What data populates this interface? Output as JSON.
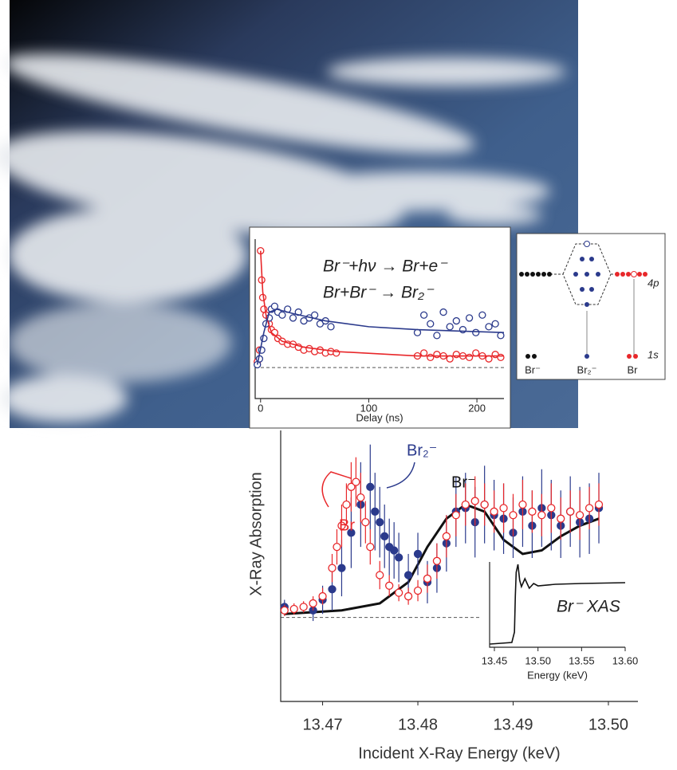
{
  "chart_data": [
    {
      "type": "scatter",
      "annotations": [
        "Br⁻+hν → Br+e⁻",
        "Br+Br⁻ → Br₂⁻"
      ],
      "x_label": "Delay (ns)",
      "xlim": [
        -5,
        225
      ],
      "xticks": [
        0,
        100,
        200
      ],
      "ylim": [
        -1.06,
        4.4
      ],
      "series": [
        {
          "kind": "scatter",
          "marker": "open",
          "color": "#e8272a",
          "x": [
            -3,
            -1,
            0,
            1,
            2,
            3,
            5,
            8,
            10,
            13,
            16,
            20,
            25,
            30,
            35,
            40,
            45,
            50,
            55,
            60,
            65,
            70,
            145,
            151,
            157,
            163,
            169,
            175,
            181,
            187,
            193,
            199,
            205,
            211,
            217,
            222
          ],
          "values": [
            0.2,
            0.6,
            4.0,
            3.0,
            2.4,
            2.0,
            1.8,
            1.5,
            1.3,
            1.2,
            1.0,
            0.9,
            0.8,
            0.8,
            0.7,
            0.6,
            0.65,
            0.55,
            0.6,
            0.5,
            0.55,
            0.5,
            0.4,
            0.5,
            0.35,
            0.45,
            0.4,
            0.3,
            0.45,
            0.4,
            0.35,
            0.5,
            0.4,
            0.3,
            0.45,
            0.35
          ]
        },
        {
          "kind": "scatter",
          "marker": "open",
          "color": "#2b3a8c",
          "x": [
            -3,
            -1,
            1,
            3,
            5,
            8,
            10,
            13,
            16,
            20,
            25,
            30,
            35,
            40,
            45,
            50,
            55,
            60,
            65,
            145,
            151,
            157,
            163,
            169,
            175,
            181,
            187,
            193,
            199,
            205,
            211,
            217,
            222
          ],
          "values": [
            0.1,
            0.3,
            0.6,
            1.0,
            1.5,
            1.7,
            2.0,
            2.1,
            1.9,
            1.8,
            2.0,
            1.7,
            1.9,
            1.6,
            1.7,
            1.8,
            1.5,
            1.6,
            1.4,
            1.2,
            1.8,
            1.5,
            1.1,
            1.9,
            1.4,
            1.6,
            1.3,
            1.7,
            1.2,
            1.8,
            1.4,
            1.5,
            1.1
          ]
        },
        {
          "kind": "line",
          "color": "#e8272a",
          "x": [
            0,
            2,
            5,
            10,
            20,
            40,
            70,
            145,
            225
          ],
          "values": [
            4.0,
            2.6,
            1.8,
            1.2,
            0.9,
            0.7,
            0.55,
            0.4,
            0.4
          ]
        },
        {
          "kind": "line",
          "color": "#2b3a8c",
          "x": [
            -3,
            3,
            8,
            15,
            30,
            60,
            100,
            145,
            225
          ],
          "values": [
            0.1,
            1.2,
            1.9,
            2.0,
            1.85,
            1.6,
            1.4,
            1.3,
            1.2
          ]
        }
      ]
    },
    {
      "type": "scatter",
      "x_label": "Incident X-Ray Energy (keV)",
      "y_label": "X-Ray Absorption",
      "annotations": [
        "Br",
        "Br₂⁻",
        "Br⁻"
      ],
      "xlim": [
        13.4656,
        13.5031
      ],
      "xticks": [
        13.47,
        13.48,
        13.49,
        {
          "value": 13.5,
          "label": "13.50"
        }
      ],
      "ylim": [
        -1.19,
        2.65
      ],
      "series": [
        {
          "kind": "line",
          "color": "#111111",
          "x": [
            13.466,
            13.472,
            13.476,
            13.479,
            13.481,
            13.483,
            13.485,
            13.487,
            13.489,
            13.491,
            13.493,
            13.495,
            13.497,
            13.499
          ],
          "values": [
            0.05,
            0.1,
            0.2,
            0.5,
            1.0,
            1.4,
            1.6,
            1.5,
            1.1,
            0.9,
            0.95,
            1.15,
            1.3,
            1.4
          ]
        },
        {
          "kind": "scatter",
          "marker": "filled",
          "color": "#2b3a8c",
          "x": [
            13.466,
            13.469,
            13.47,
            13.471,
            13.472,
            13.473,
            13.474,
            13.475,
            13.4755,
            13.476,
            13.4765,
            13.477,
            13.4775,
            13.478,
            13.479,
            13.48,
            13.481,
            13.482,
            13.483,
            13.484,
            13.485,
            13.486,
            13.487,
            13.488,
            13.489,
            13.49,
            13.491,
            13.492,
            13.493,
            13.494,
            13.495,
            13.496,
            13.497,
            13.498,
            13.499
          ],
          "values": [
            0.15,
            0.1,
            0.25,
            0.4,
            0.7,
            1.2,
            1.6,
            1.85,
            1.5,
            1.35,
            1.15,
            1.0,
            0.95,
            0.85,
            0.6,
            0.9,
            0.5,
            0.7,
            1.05,
            1.5,
            1.55,
            1.35,
            1.6,
            1.45,
            1.4,
            1.2,
            1.5,
            1.3,
            1.55,
            1.45,
            1.3,
            1.5,
            1.35,
            1.4,
            1.55
          ],
          "errors": [
            0.1,
            0.15,
            0.2,
            0.3,
            0.4,
            0.5,
            0.6,
            0.6,
            0.55,
            0.5,
            0.45,
            0.4,
            0.4,
            0.35,
            0.3,
            0.3,
            0.3,
            0.35,
            0.4,
            0.5,
            0.5,
            0.5,
            0.55,
            0.5,
            0.5,
            0.5,
            0.5,
            0.5,
            0.55,
            0.5,
            0.5,
            0.5,
            0.5,
            0.5,
            0.5
          ]
        },
        {
          "kind": "scatter",
          "marker": "open",
          "color": "#e8272a",
          "x": [
            13.466,
            13.467,
            13.468,
            13.469,
            13.47,
            13.471,
            13.4715,
            13.472,
            13.4725,
            13.473,
            13.4735,
            13.474,
            13.4745,
            13.475,
            13.476,
            13.477,
            13.478,
            13.479,
            13.48,
            13.481,
            13.482,
            13.483,
            13.484,
            13.485,
            13.486,
            13.487,
            13.488,
            13.489,
            13.49,
            13.491,
            13.492,
            13.493,
            13.494,
            13.495,
            13.496,
            13.497,
            13.498,
            13.499
          ],
          "values": [
            0.1,
            0.12,
            0.15,
            0.2,
            0.3,
            0.7,
            1.0,
            1.3,
            1.6,
            1.85,
            1.92,
            1.7,
            1.35,
            1.0,
            0.6,
            0.45,
            0.35,
            0.3,
            0.38,
            0.55,
            0.8,
            1.15,
            1.45,
            1.6,
            1.65,
            1.6,
            1.5,
            1.55,
            1.45,
            1.6,
            1.5,
            1.45,
            1.55,
            1.4,
            1.5,
            1.45,
            1.55,
            1.6
          ],
          "errors": [
            0.08,
            0.08,
            0.08,
            0.1,
            0.12,
            0.2,
            0.25,
            0.3,
            0.3,
            0.35,
            0.35,
            0.35,
            0.3,
            0.25,
            0.2,
            0.15,
            0.12,
            0.12,
            0.15,
            0.2,
            0.25,
            0.3,
            0.3,
            0.3,
            0.35,
            0.3,
            0.3,
            0.35,
            0.3,
            0.35,
            0.3,
            0.3,
            0.35,
            0.3,
            0.3,
            0.35,
            0.3,
            0.3
          ]
        }
      ]
    },
    {
      "type": "line",
      "annotations": [
        "Br⁻ XAS"
      ],
      "x_label": "Energy (keV)",
      "xlim": [
        13.4445,
        13.6
      ],
      "xticks": [
        13.45,
        {
          "value": 13.5,
          "label": "13.50"
        },
        13.55,
        {
          "value": 13.6,
          "label": "13.60"
        }
      ],
      "ylim": [
        -0.04,
        1.03
      ],
      "series": [
        {
          "kind": "line",
          "color": "#111111",
          "x": [
            13.445,
            13.47,
            13.473,
            13.474,
            13.475,
            13.477,
            13.479,
            13.481,
            13.485,
            13.49,
            13.495,
            13.5,
            13.52,
            13.55,
            13.6
          ],
          "values": [
            0,
            0.02,
            0.15,
            0.6,
            0.9,
            1.0,
            0.8,
            0.72,
            0.82,
            0.7,
            0.76,
            0.73,
            0.75,
            0.76,
            0.77
          ]
        }
      ]
    }
  ],
  "diagram": {
    "labels": [
      "Br⁻",
      "Br₂⁻",
      "Br",
      "4p",
      "1s"
    ]
  }
}
